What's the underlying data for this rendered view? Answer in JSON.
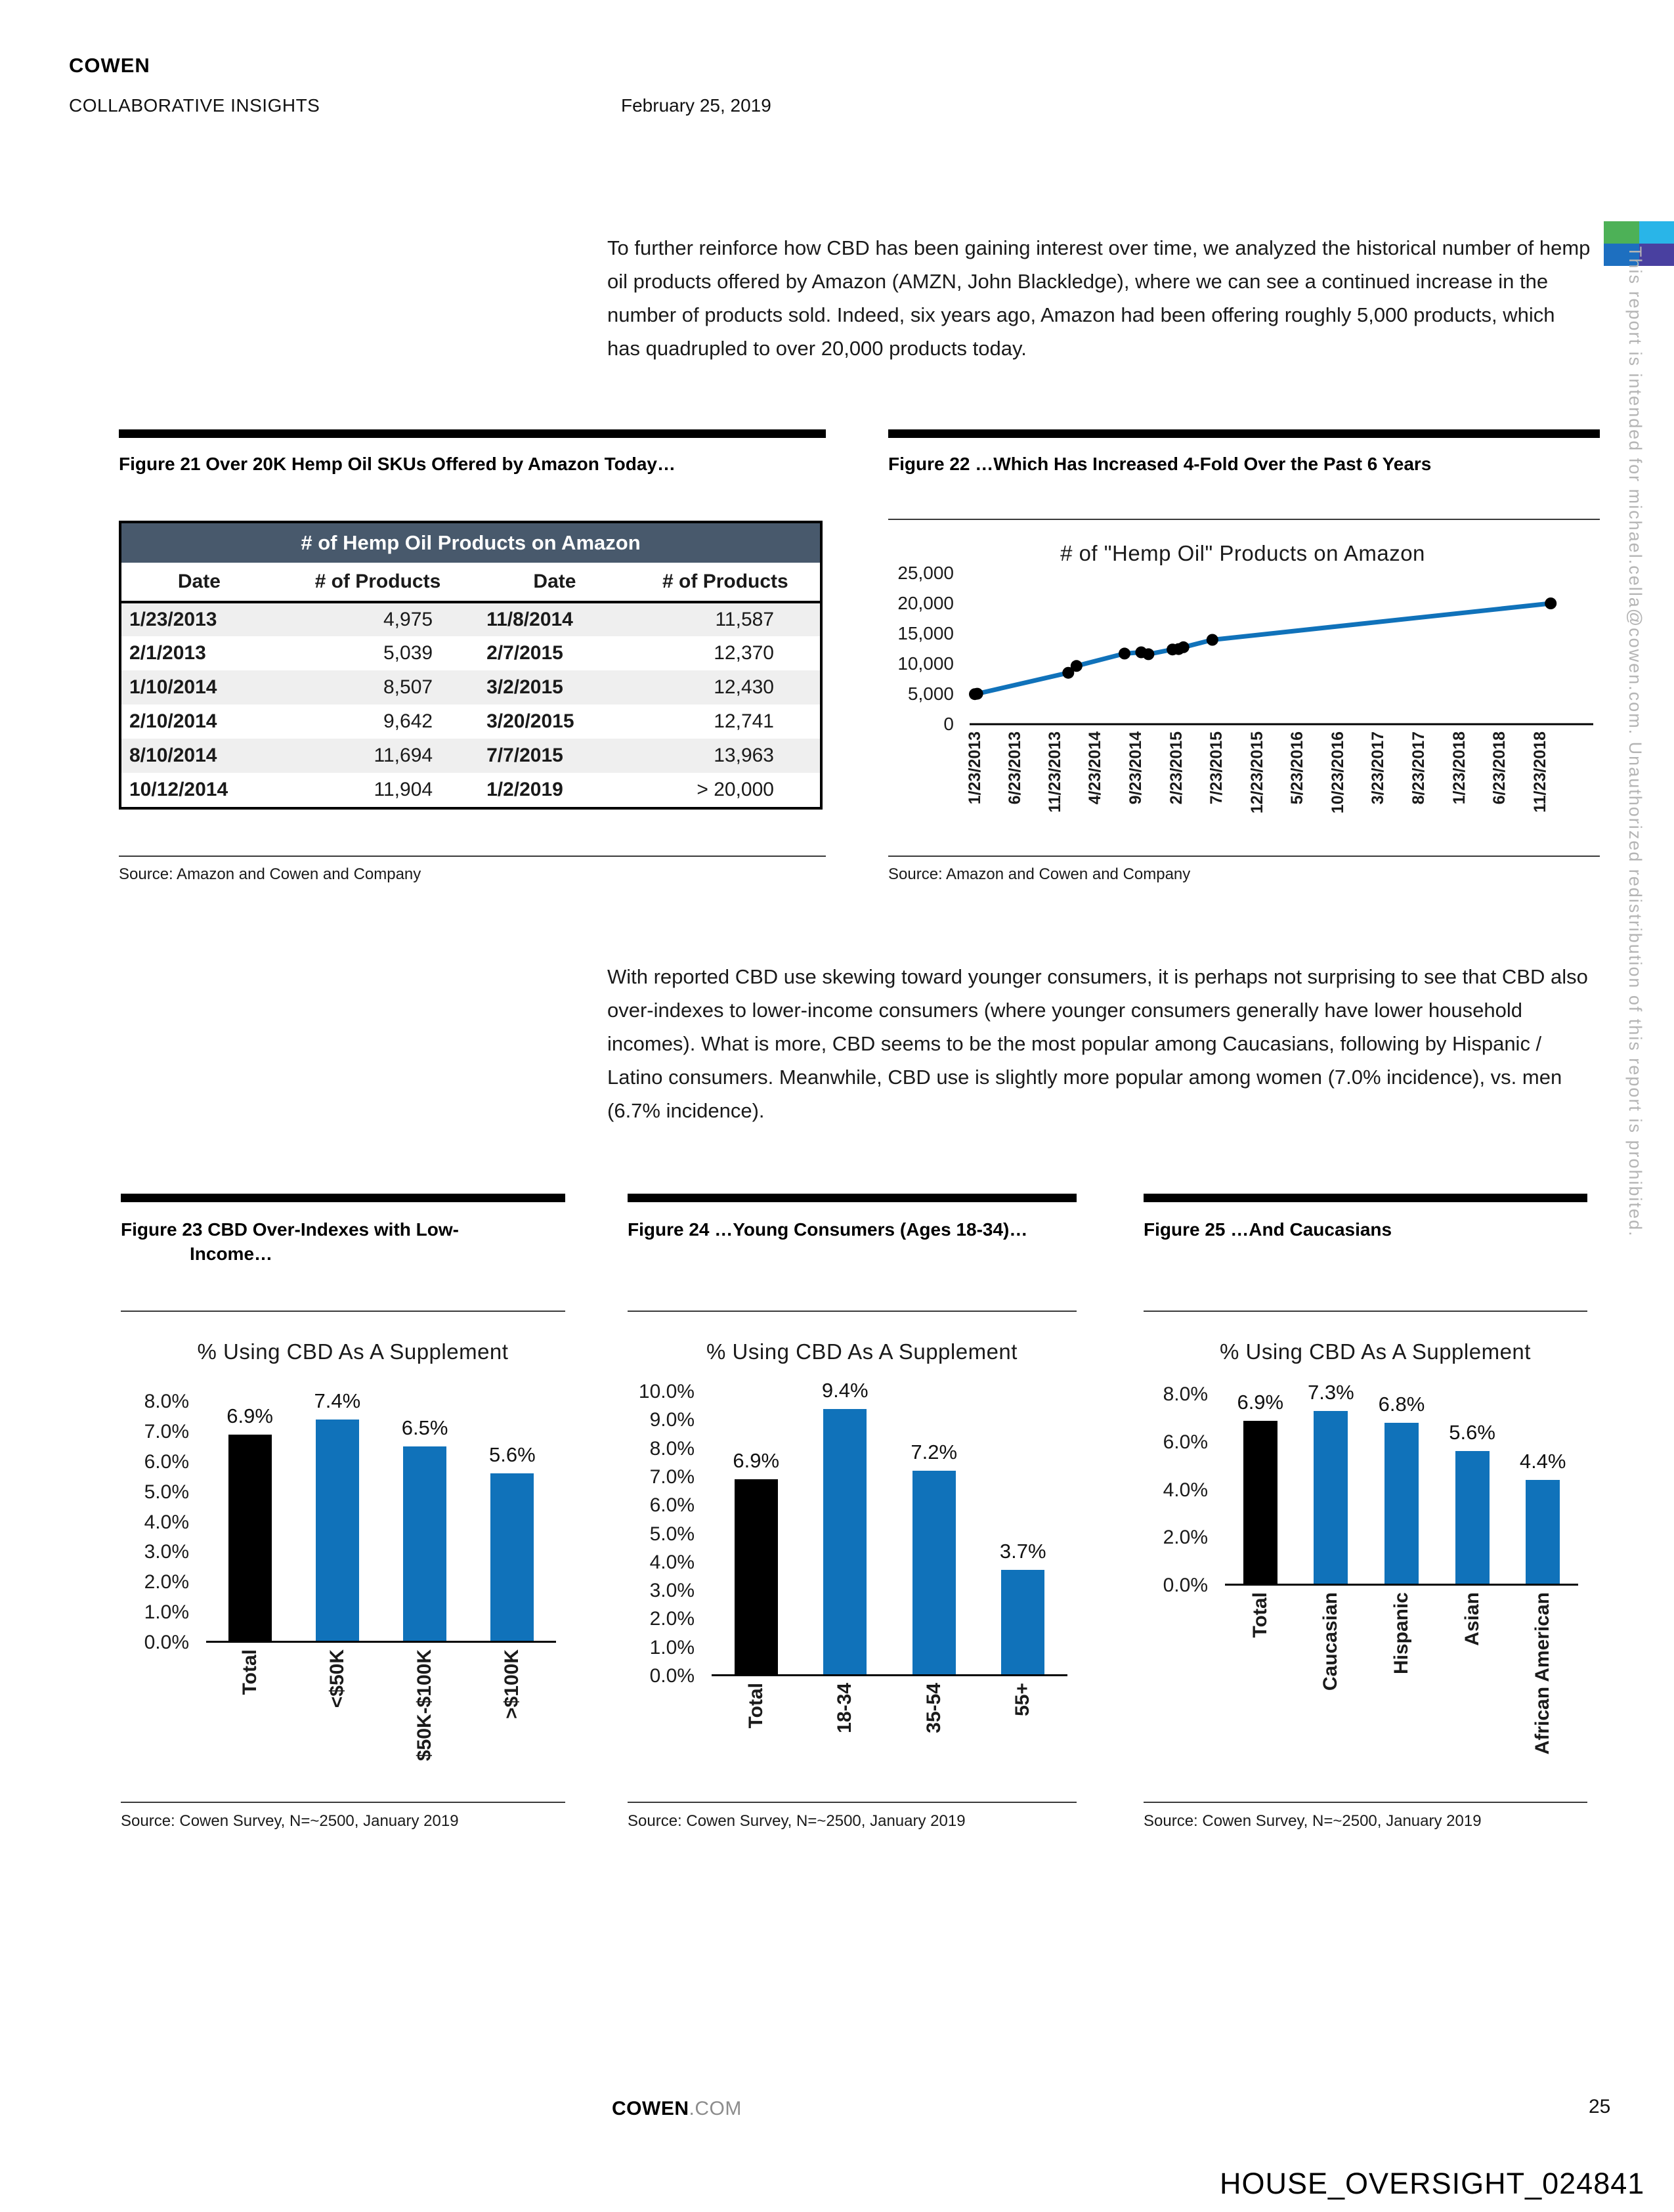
{
  "header": {
    "brand": "COWEN",
    "brand_sub": "COLLABORATIVE INSIGHTS",
    "date": "February 25, 2019"
  },
  "sidebar": {
    "notice": "This report is intended for michael.cella@cowen.com. Unauthorized redistribution of this report is prohibited.",
    "logo_colors": [
      "#4DB157",
      "#29B5E8",
      "#1D6FC0",
      "#4940A0"
    ]
  },
  "paragraphs": {
    "p1": "To further reinforce how CBD has been gaining interest over time, we analyzed the historical number of hemp oil products offered by Amazon (AMZN, John Blackledge), where we can see a continued increase in the number of products sold. Indeed, six years ago, Amazon had been offering roughly 5,000 products, which has quadrupled to over 20,000 products today.",
    "p2": "With reported CBD use skewing toward younger consumers, it is perhaps not surprising to see that CBD also over-indexes to lower-income consumers (where younger consumers generally have lower household incomes). What is more, CBD seems to be the most popular among Caucasians, following by Hispanic / Latino consumers. Meanwhile, CBD use is slightly more popular among women (7.0% incidence), vs. men (6.7% incidence)."
  },
  "figure21": {
    "title": "Figure 21 Over 20K Hemp Oil SKUs Offered by Amazon Today…",
    "source": "Source: Amazon and Cowen and Company",
    "table": {
      "header": "# of Hemp Oil Products on Amazon",
      "columns": [
        "Date",
        "# of Products",
        "Date",
        "# of Products"
      ],
      "rows": [
        [
          "1/23/2013",
          "4,975",
          "11/8/2014",
          "11,587"
        ],
        [
          "2/1/2013",
          "5,039",
          "2/7/2015",
          "12,370"
        ],
        [
          "1/10/2014",
          "8,507",
          "3/2/2015",
          "12,430"
        ],
        [
          "2/10/2014",
          "9,642",
          "3/20/2015",
          "12,741"
        ],
        [
          "8/10/2014",
          "11,694",
          "7/7/2015",
          "13,963"
        ],
        [
          "10/12/2014",
          "11,904",
          "1/2/2019",
          "> 20,000"
        ]
      ]
    }
  },
  "figure22": {
    "title": "Figure 22 …Which Has Increased 4-Fold Over the Past 6 Years",
    "source": "Source: Amazon and Cowen and Company"
  },
  "figure23": {
    "title_line1": "Figure 23 CBD Over-Indexes with Low-",
    "title_line2": "Income…",
    "source": "Source: Cowen Survey, N=~2500, January 2019"
  },
  "figure24": {
    "title": "Figure 24 …Young Consumers (Ages 18-34)…",
    "source": "Source: Cowen Survey, N=~2500, January 2019"
  },
  "figure25": {
    "title": "Figure 25 …And Caucasians",
    "source": "Source: Cowen Survey, N=~2500, January 2019"
  },
  "chart_data": [
    {
      "type": "line",
      "title": "# of \"Hemp Oil\" Products on Amazon",
      "x": [
        "1/23/2013",
        "2/1/2013",
        "1/10/2014",
        "2/10/2014",
        "8/10/2014",
        "10/12/2014",
        "11/8/2014",
        "2/7/2015",
        "3/2/2015",
        "3/20/2015",
        "7/7/2015",
        "1/2/2019"
      ],
      "values": [
        4975,
        5039,
        8507,
        9642,
        11694,
        11904,
        11587,
        12370,
        12430,
        12741,
        13963,
        20000
      ],
      "xticks": [
        "1/23/2013",
        "6/23/2013",
        "11/23/2013",
        "4/23/2014",
        "9/23/2014",
        "2/23/2015",
        "7/23/2015",
        "12/23/2015",
        "5/23/2016",
        "10/23/2016",
        "3/23/2017",
        "8/23/2017",
        "1/23/2018",
        "6/23/2018",
        "11/23/2018"
      ],
      "yticks": [
        "25,000",
        "20,000",
        "15,000",
        "10,000",
        "5,000",
        "0"
      ],
      "ylim": [
        0,
        25000
      ],
      "line_color": "#1072BA",
      "marker_color": "#000000",
      "legend": "none",
      "grid": false
    },
    {
      "type": "bar",
      "title": "% Using CBD As A Supplement",
      "categories": [
        "Total",
        "<$50K",
        "$50K-$100K",
        ">$100K"
      ],
      "values": [
        6.9,
        7.4,
        6.5,
        5.6
      ],
      "labels": [
        "6.9%",
        "7.4%",
        "6.5%",
        "5.6%"
      ],
      "bar_colors": [
        "#000000",
        "#1072BA",
        "#1072BA",
        "#1072BA"
      ],
      "yticks": [
        "8.0%",
        "7.0%",
        "6.0%",
        "5.0%",
        "4.0%",
        "3.0%",
        "2.0%",
        "1.0%",
        "0.0%"
      ],
      "ylim": [
        0,
        8
      ],
      "grid": false
    },
    {
      "type": "bar",
      "title": "% Using CBD As A Supplement",
      "categories": [
        "Total",
        "18-34",
        "35-54",
        "55+"
      ],
      "values": [
        6.9,
        9.4,
        7.2,
        3.7
      ],
      "labels": [
        "6.9%",
        "9.4%",
        "7.2%",
        "3.7%"
      ],
      "bar_colors": [
        "#000000",
        "#1072BA",
        "#1072BA",
        "#1072BA"
      ],
      "yticks": [
        "10.0%",
        "9.0%",
        "8.0%",
        "7.0%",
        "6.0%",
        "5.0%",
        "4.0%",
        "3.0%",
        "2.0%",
        "1.0%",
        "0.0%"
      ],
      "ylim": [
        0,
        10
      ],
      "grid": false
    },
    {
      "type": "bar",
      "title": "% Using CBD As A Supplement",
      "categories": [
        "Total",
        "Caucasian",
        "Hispanic",
        "Asian",
        "African American"
      ],
      "values": [
        6.9,
        7.3,
        6.8,
        5.6,
        4.4
      ],
      "labels": [
        "6.9%",
        "7.3%",
        "6.8%",
        "5.6%",
        "4.4%"
      ],
      "bar_colors": [
        "#000000",
        "#1072BA",
        "#1072BA",
        "#1072BA",
        "#1072BA"
      ],
      "yticks": [
        "8.0%",
        "6.0%",
        "4.0%",
        "2.0%",
        "0.0%"
      ],
      "ylim": [
        0,
        8
      ],
      "grid": false
    }
  ],
  "footer": {
    "brand": "COWEN",
    "brand_suffix": ".COM",
    "page_number": "25",
    "watermark": "HOUSE_OVERSIGHT_024841"
  }
}
